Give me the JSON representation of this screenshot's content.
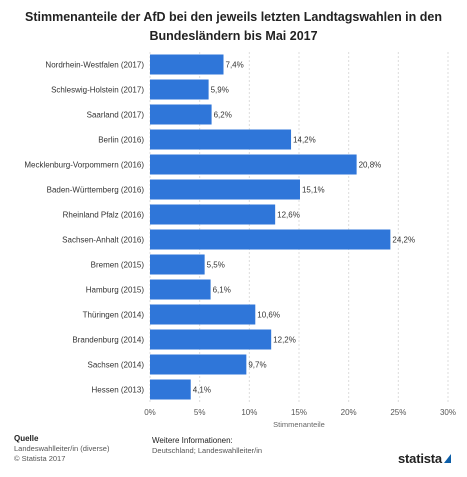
{
  "chart_data": {
    "type": "bar",
    "orientation": "horizontal",
    "title": "Stimmenanteile der AfD bei den jeweils letzten Landtagswahlen in den Bundesländern bis Mai 2017",
    "xlabel": "Stimmenanteile",
    "ylabel": "",
    "xlim": [
      0,
      30
    ],
    "ticks": [
      0,
      5,
      10,
      15,
      20,
      25,
      30
    ],
    "tick_labels": [
      "0%",
      "5%",
      "10%",
      "15%",
      "20%",
      "25%",
      "30%"
    ],
    "grid": true,
    "bar_color": "#2f76d9",
    "categories": [
      "Nordrhein-Westfalen (2017)",
      "Schleswig-Holstein (2017)",
      "Saarland (2017)",
      "Berlin (2016)",
      "Mecklenburg-Vorpommern (2016)",
      "Baden-Württemberg (2016)",
      "Rheinland Pfalz (2016)",
      "Sachsen-Anhalt (2016)",
      "Bremen (2015)",
      "Hamburg (2015)",
      "Thüringen (2014)",
      "Brandenburg (2014)",
      "Sachsen (2014)",
      "Hessen (2013)"
    ],
    "values": [
      7.4,
      5.9,
      6.2,
      14.2,
      20.8,
      15.1,
      12.6,
      24.2,
      5.5,
      6.1,
      10.6,
      12.2,
      9.7,
      4.1
    ],
    "value_labels": [
      "7,4%",
      "5,9%",
      "6,2%",
      "14,2%",
      "20,8%",
      "15,1%",
      "12,6%",
      "24,2%",
      "5,5%",
      "6,1%",
      "10,6%",
      "12,2%",
      "9,7%",
      "4,1%"
    ]
  },
  "footer": {
    "source_heading": "Quelle",
    "source_line": "Landeswahlleiter/in (diverse)",
    "copyright": "© Statista 2017",
    "info_heading": "Weitere Informationen:",
    "info_line": "Deutschland; Landeswahlleiter/in"
  },
  "brand": {
    "logo_text": "statista",
    "logo_icon": "statista-arrow-icon",
    "logo_color": "#0c5ea8"
  }
}
